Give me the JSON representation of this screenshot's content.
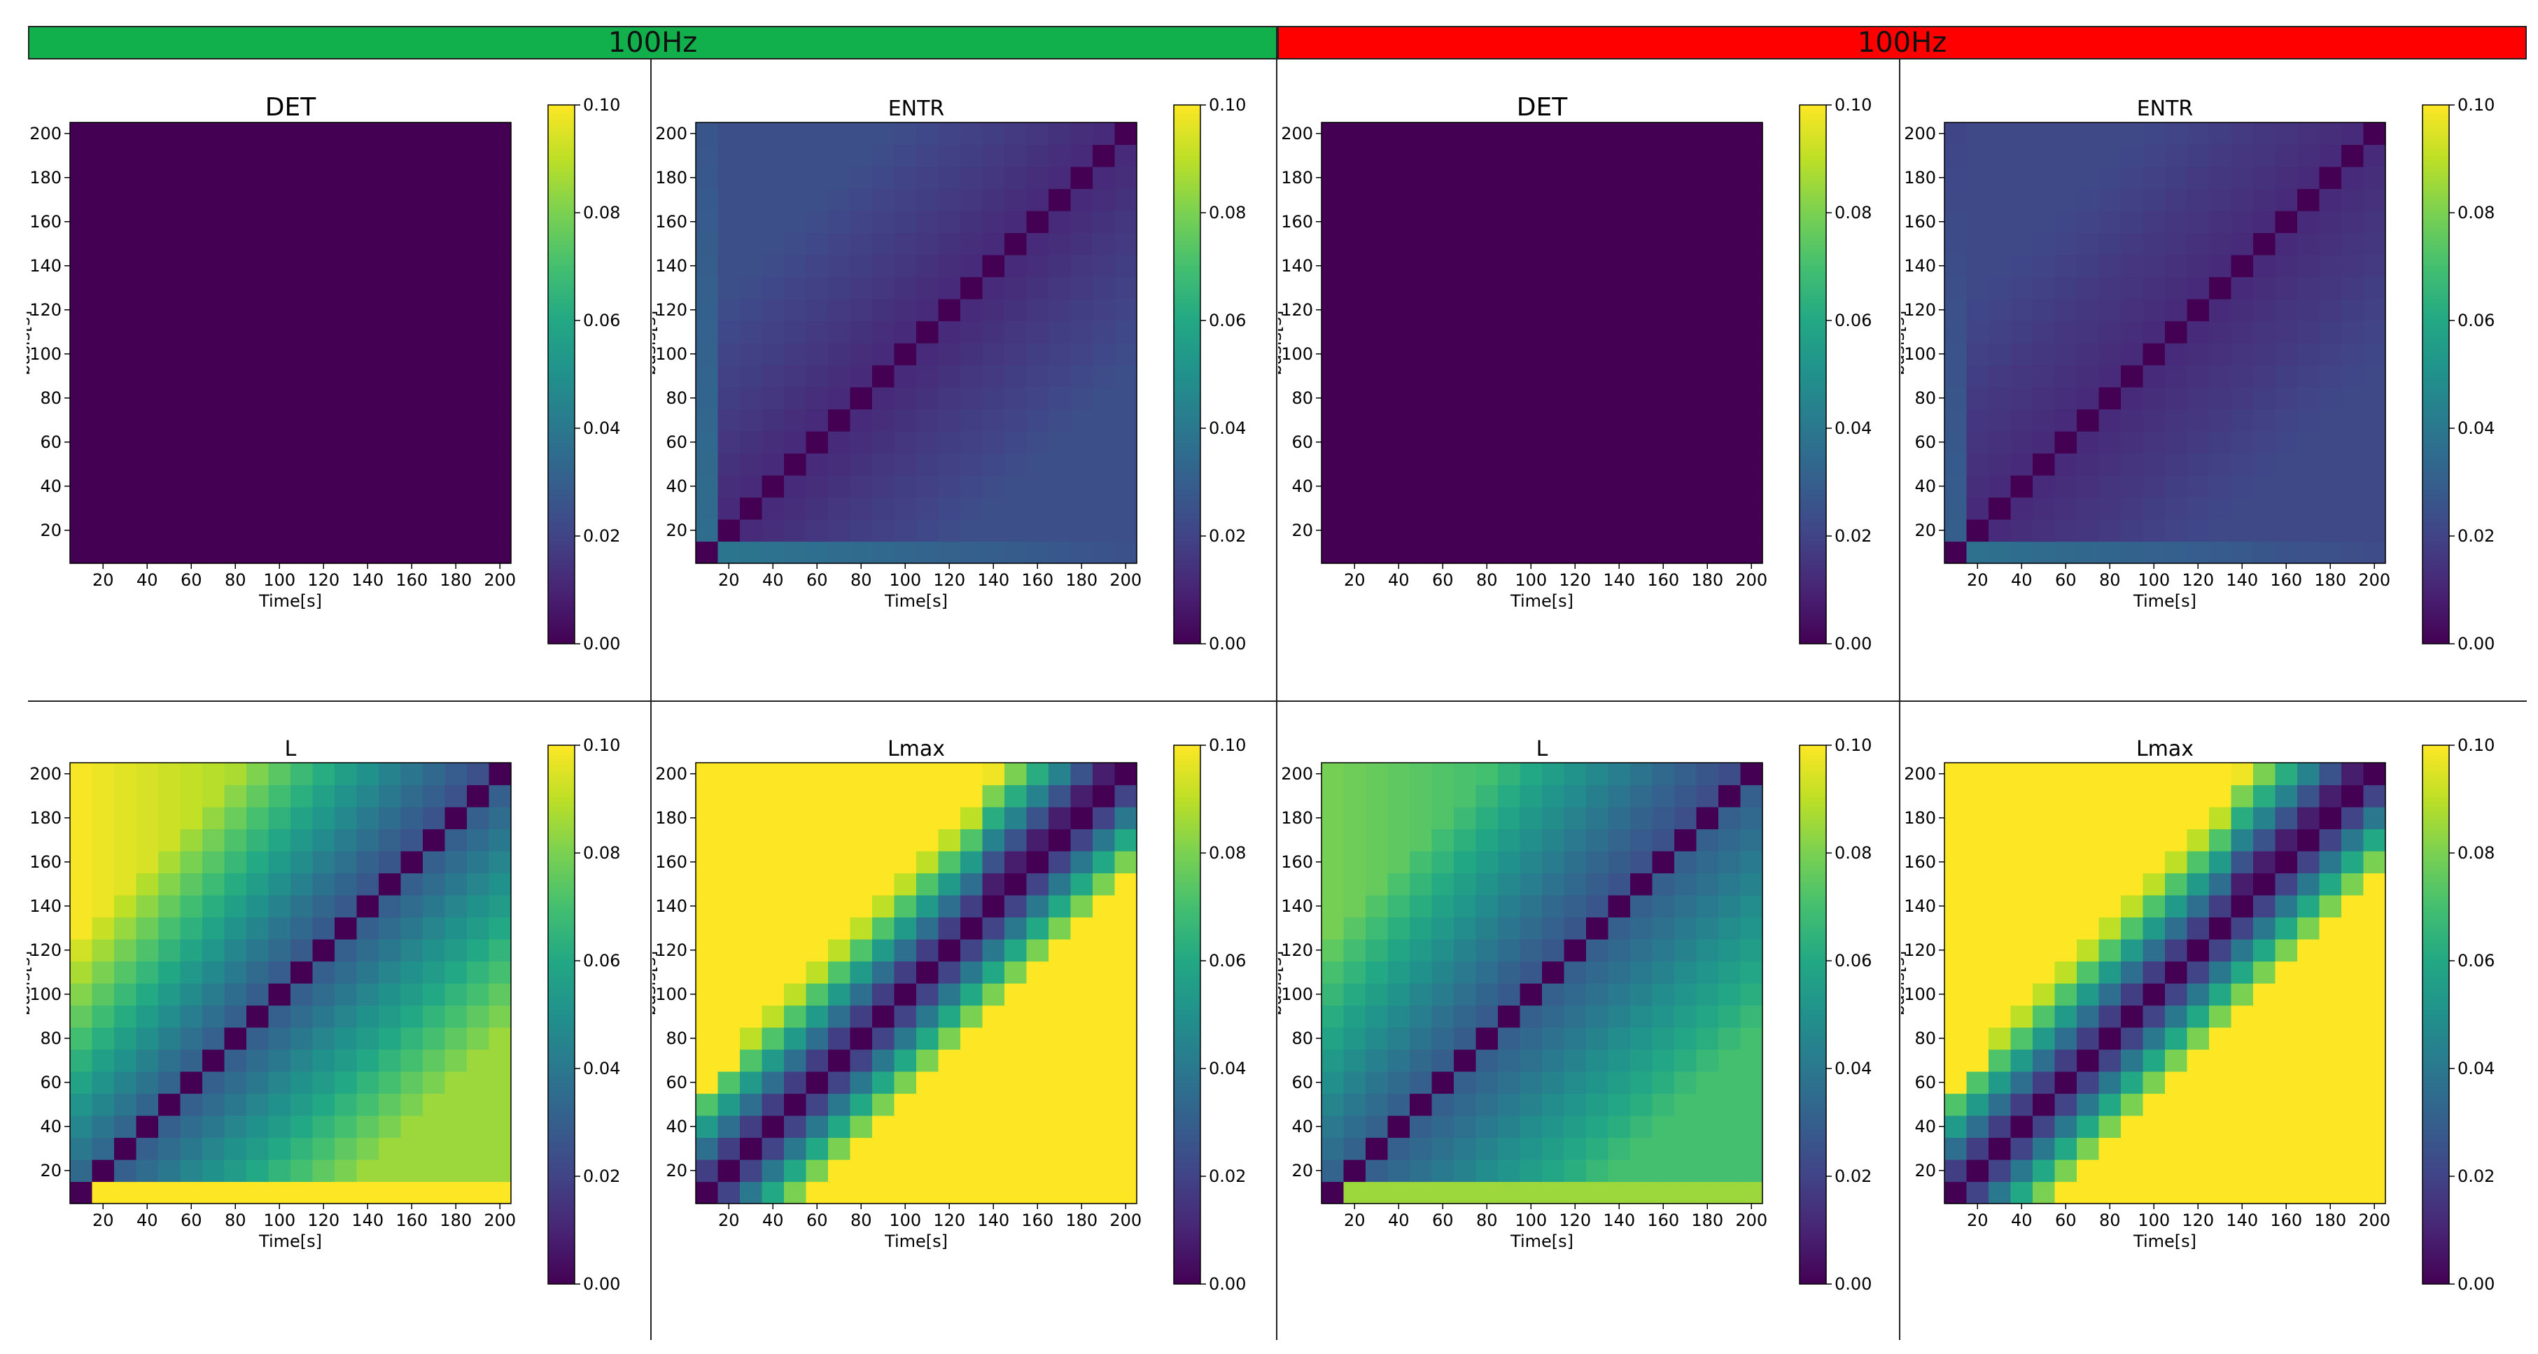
{
  "header": {
    "left_label": "100Hz",
    "right_label": "100Hz",
    "left_color": "#12b04c",
    "right_color": "#ff0000"
  },
  "colormap": "viridis",
  "chart_data": [
    {
      "type": "heatmap",
      "group": "left",
      "title": "DET",
      "xlabel": "Time[s]",
      "ylabel": "basis[s]",
      "grid_size": 20,
      "x_ticks": [
        20,
        40,
        60,
        80,
        100,
        120,
        140,
        160,
        180,
        200
      ],
      "y_ticks": [
        20,
        40,
        60,
        80,
        100,
        120,
        140,
        160,
        180,
        200
      ],
      "colorbar": {
        "min": 0.0,
        "max": 0.1,
        "ticks": [
          "0.00",
          "0.02",
          "0.04",
          "0.06",
          "0.08",
          "0.10"
        ]
      },
      "pattern": "zero",
      "note_values": "all cells ≈ 0.00"
    },
    {
      "type": "heatmap",
      "group": "left",
      "title": "ENTR",
      "xlabel": "Time[s]",
      "ylabel": "basis[s]",
      "grid_size": 20,
      "x_ticks": [
        20,
        40,
        60,
        80,
        100,
        120,
        140,
        160,
        180,
        200
      ],
      "y_ticks": [
        20,
        40,
        60,
        80,
        100,
        120,
        140,
        160,
        180,
        200
      ],
      "colorbar": {
        "min": 0.0,
        "max": 0.1,
        "ticks": [
          "0.00",
          "0.02",
          "0.04",
          "0.06",
          "0.08",
          "0.10"
        ]
      },
      "pattern": "entr",
      "diag": 0.0,
      "near_diag": 0.012,
      "far": 0.024,
      "edge_row": 0.04,
      "edge_col": 0.036
    },
    {
      "type": "heatmap",
      "group": "right",
      "title": "DET",
      "xlabel": "Time[s]",
      "ylabel": "basis[s]",
      "grid_size": 20,
      "x_ticks": [
        20,
        40,
        60,
        80,
        100,
        120,
        140,
        160,
        180,
        200
      ],
      "y_ticks": [
        20,
        40,
        60,
        80,
        100,
        120,
        140,
        160,
        180,
        200
      ],
      "colorbar": {
        "min": 0.0,
        "max": 0.1,
        "ticks": [
          "0.00",
          "0.02",
          "0.04",
          "0.06",
          "0.08",
          "0.10"
        ]
      },
      "pattern": "zero"
    },
    {
      "type": "heatmap",
      "group": "right",
      "title": "ENTR",
      "xlabel": "Time[s]",
      "ylabel": "basis[s]",
      "grid_size": 20,
      "x_ticks": [
        20,
        40,
        60,
        80,
        100,
        120,
        140,
        160,
        180,
        200
      ],
      "y_ticks": [
        20,
        40,
        60,
        80,
        100,
        120,
        140,
        160,
        180,
        200
      ],
      "colorbar": {
        "min": 0.0,
        "max": 0.1,
        "ticks": [
          "0.00",
          "0.02",
          "0.04",
          "0.06",
          "0.08",
          "0.10"
        ]
      },
      "pattern": "entr",
      "diag": 0.0,
      "near_diag": 0.012,
      "far": 0.022,
      "edge_row": 0.038,
      "edge_col": 0.03
    },
    {
      "type": "heatmap",
      "group": "left",
      "title": "L",
      "xlabel": "Time[s]",
      "ylabel": "basis[s]",
      "grid_size": 20,
      "x_ticks": [
        20,
        40,
        60,
        80,
        100,
        120,
        140,
        160,
        180,
        200
      ],
      "y_ticks": [
        20,
        40,
        60,
        80,
        100,
        120,
        140,
        160,
        180,
        200
      ],
      "colorbar": {
        "min": 0.0,
        "max": 0.1,
        "ticks": [
          "0.00",
          "0.02",
          "0.04",
          "0.06",
          "0.08",
          "0.10"
        ]
      },
      "pattern": "L",
      "diag": 0.0,
      "upper_far": 0.095,
      "upper_near": 0.03,
      "lower_far": 0.085,
      "lower_near": 0.03,
      "edge_row": 0.1
    },
    {
      "type": "heatmap",
      "group": "left",
      "title": "Lmax",
      "xlabel": "Time[s]",
      "ylabel": "basis[s]",
      "grid_size": 20,
      "x_ticks": [
        20,
        40,
        60,
        80,
        100,
        120,
        140,
        160,
        180,
        200
      ],
      "y_ticks": [
        20,
        40,
        60,
        80,
        100,
        120,
        140,
        160,
        180,
        200
      ],
      "colorbar": {
        "min": 0.0,
        "max": 0.1,
        "ticks": [
          "0.00",
          "0.02",
          "0.04",
          "0.06",
          "0.08",
          "0.10"
        ]
      },
      "pattern": "Lmax",
      "diag": 0.0,
      "band_upper": 4,
      "band_lower": 3,
      "saturation": 0.1
    },
    {
      "type": "heatmap",
      "group": "right",
      "title": "L",
      "xlabel": "Time[s]",
      "ylabel": "basis[s]",
      "grid_size": 20,
      "x_ticks": [
        20,
        40,
        60,
        80,
        100,
        120,
        140,
        160,
        180,
        200
      ],
      "y_ticks": [
        20,
        40,
        60,
        80,
        100,
        120,
        140,
        160,
        180,
        200
      ],
      "colorbar": {
        "min": 0.0,
        "max": 0.1,
        "ticks": [
          "0.00",
          "0.02",
          "0.04",
          "0.06",
          "0.08",
          "0.10"
        ]
      },
      "pattern": "L",
      "diag": 0.0,
      "upper_far": 0.075,
      "upper_near": 0.028,
      "lower_far": 0.07,
      "lower_near": 0.03,
      "edge_row": 0.085
    },
    {
      "type": "heatmap",
      "group": "right",
      "title": "Lmax",
      "xlabel": "Time[s]",
      "ylabel": "basis[s]",
      "grid_size": 20,
      "x_ticks": [
        20,
        40,
        60,
        80,
        100,
        120,
        140,
        160,
        180,
        200
      ],
      "y_ticks": [
        20,
        40,
        60,
        80,
        100,
        120,
        140,
        160,
        180,
        200
      ],
      "colorbar": {
        "min": 0.0,
        "max": 0.1,
        "ticks": [
          "0.00",
          "0.02",
          "0.04",
          "0.06",
          "0.08",
          "0.10"
        ]
      },
      "pattern": "Lmax",
      "diag": 0.0,
      "band_upper": 4,
      "band_lower": 3,
      "saturation": 0.1
    }
  ]
}
